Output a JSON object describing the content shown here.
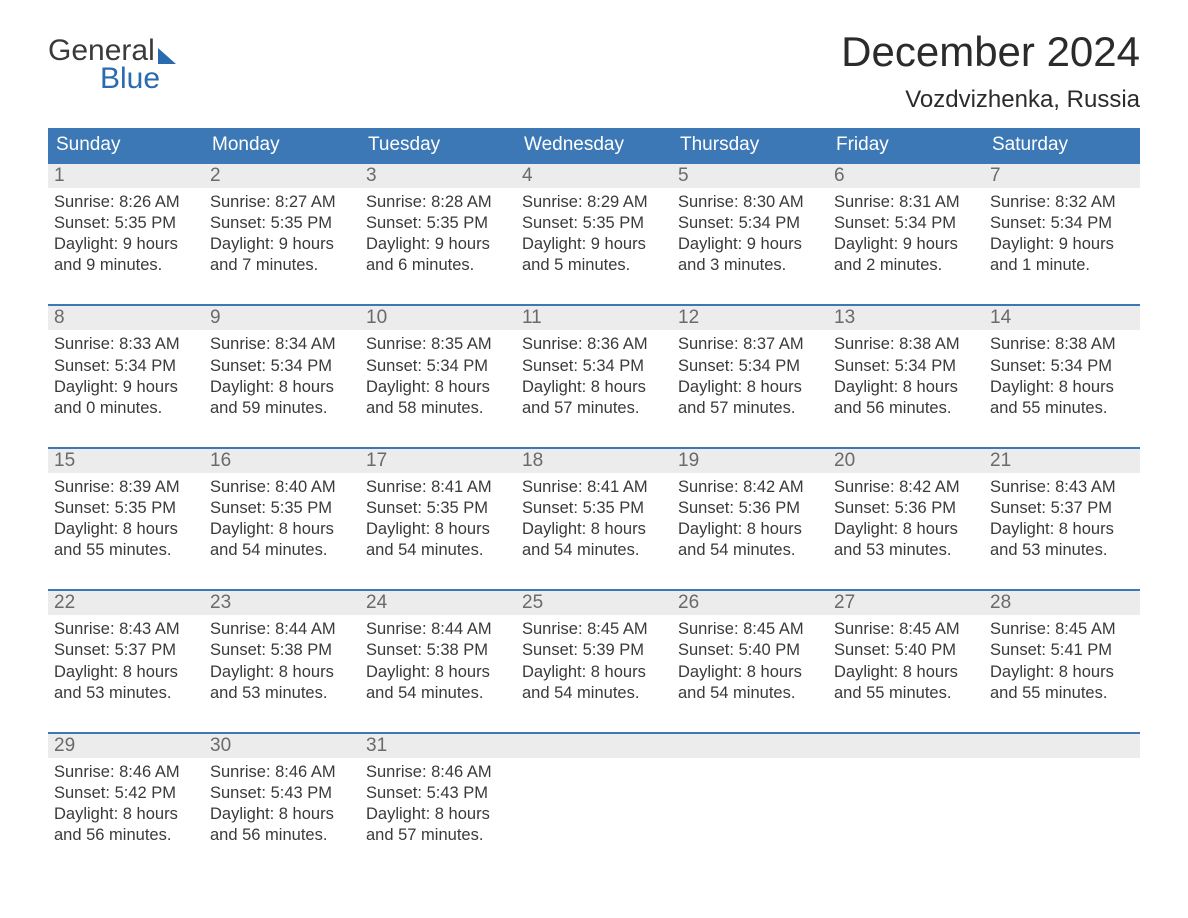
{
  "brand": {
    "top": "General",
    "bottom": "Blue"
  },
  "title": "December 2024",
  "location": "Vozdvizhenka, Russia",
  "colors": {
    "header_bg": "#3b78b5",
    "header_text": "#ffffff",
    "daynum_bg": "#ececec",
    "daynum_text": "#6a6a6a",
    "cell_text": "#3a3a3a",
    "rule": "#3b78b5",
    "title_text": "#2b2b2b",
    "brand_dark": "#3a3a3a",
    "brand_blue": "#2a6bb0"
  },
  "day_names": [
    "Sunday",
    "Monday",
    "Tuesday",
    "Wednesday",
    "Thursday",
    "Friday",
    "Saturday"
  ],
  "weeks": [
    [
      {
        "n": "1",
        "sr": "8:26 AM",
        "ss": "5:35 PM",
        "dl1": "9 hours",
        "dl2": "and 9 minutes."
      },
      {
        "n": "2",
        "sr": "8:27 AM",
        "ss": "5:35 PM",
        "dl1": "9 hours",
        "dl2": "and 7 minutes."
      },
      {
        "n": "3",
        "sr": "8:28 AM",
        "ss": "5:35 PM",
        "dl1": "9 hours",
        "dl2": "and 6 minutes."
      },
      {
        "n": "4",
        "sr": "8:29 AM",
        "ss": "5:35 PM",
        "dl1": "9 hours",
        "dl2": "and 5 minutes."
      },
      {
        "n": "5",
        "sr": "8:30 AM",
        "ss": "5:34 PM",
        "dl1": "9 hours",
        "dl2": "and 3 minutes."
      },
      {
        "n": "6",
        "sr": "8:31 AM",
        "ss": "5:34 PM",
        "dl1": "9 hours",
        "dl2": "and 2 minutes."
      },
      {
        "n": "7",
        "sr": "8:32 AM",
        "ss": "5:34 PM",
        "dl1": "9 hours",
        "dl2": "and 1 minute."
      }
    ],
    [
      {
        "n": "8",
        "sr": "8:33 AM",
        "ss": "5:34 PM",
        "dl1": "9 hours",
        "dl2": "and 0 minutes."
      },
      {
        "n": "9",
        "sr": "8:34 AM",
        "ss": "5:34 PM",
        "dl1": "8 hours",
        "dl2": "and 59 minutes."
      },
      {
        "n": "10",
        "sr": "8:35 AM",
        "ss": "5:34 PM",
        "dl1": "8 hours",
        "dl2": "and 58 minutes."
      },
      {
        "n": "11",
        "sr": "8:36 AM",
        "ss": "5:34 PM",
        "dl1": "8 hours",
        "dl2": "and 57 minutes."
      },
      {
        "n": "12",
        "sr": "8:37 AM",
        "ss": "5:34 PM",
        "dl1": "8 hours",
        "dl2": "and 57 minutes."
      },
      {
        "n": "13",
        "sr": "8:38 AM",
        "ss": "5:34 PM",
        "dl1": "8 hours",
        "dl2": "and 56 minutes."
      },
      {
        "n": "14",
        "sr": "8:38 AM",
        "ss": "5:34 PM",
        "dl1": "8 hours",
        "dl2": "and 55 minutes."
      }
    ],
    [
      {
        "n": "15",
        "sr": "8:39 AM",
        "ss": "5:35 PM",
        "dl1": "8 hours",
        "dl2": "and 55 minutes."
      },
      {
        "n": "16",
        "sr": "8:40 AM",
        "ss": "5:35 PM",
        "dl1": "8 hours",
        "dl2": "and 54 minutes."
      },
      {
        "n": "17",
        "sr": "8:41 AM",
        "ss": "5:35 PM",
        "dl1": "8 hours",
        "dl2": "and 54 minutes."
      },
      {
        "n": "18",
        "sr": "8:41 AM",
        "ss": "5:35 PM",
        "dl1": "8 hours",
        "dl2": "and 54 minutes."
      },
      {
        "n": "19",
        "sr": "8:42 AM",
        "ss": "5:36 PM",
        "dl1": "8 hours",
        "dl2": "and 54 minutes."
      },
      {
        "n": "20",
        "sr": "8:42 AM",
        "ss": "5:36 PM",
        "dl1": "8 hours",
        "dl2": "and 53 minutes."
      },
      {
        "n": "21",
        "sr": "8:43 AM",
        "ss": "5:37 PM",
        "dl1": "8 hours",
        "dl2": "and 53 minutes."
      }
    ],
    [
      {
        "n": "22",
        "sr": "8:43 AM",
        "ss": "5:37 PM",
        "dl1": "8 hours",
        "dl2": "and 53 minutes."
      },
      {
        "n": "23",
        "sr": "8:44 AM",
        "ss": "5:38 PM",
        "dl1": "8 hours",
        "dl2": "and 53 minutes."
      },
      {
        "n": "24",
        "sr": "8:44 AM",
        "ss": "5:38 PM",
        "dl1": "8 hours",
        "dl2": "and 54 minutes."
      },
      {
        "n": "25",
        "sr": "8:45 AM",
        "ss": "5:39 PM",
        "dl1": "8 hours",
        "dl2": "and 54 minutes."
      },
      {
        "n": "26",
        "sr": "8:45 AM",
        "ss": "5:40 PM",
        "dl1": "8 hours",
        "dl2": "and 54 minutes."
      },
      {
        "n": "27",
        "sr": "8:45 AM",
        "ss": "5:40 PM",
        "dl1": "8 hours",
        "dl2": "and 55 minutes."
      },
      {
        "n": "28",
        "sr": "8:45 AM",
        "ss": "5:41 PM",
        "dl1": "8 hours",
        "dl2": "and 55 minutes."
      }
    ],
    [
      {
        "n": "29",
        "sr": "8:46 AM",
        "ss": "5:42 PM",
        "dl1": "8 hours",
        "dl2": "and 56 minutes."
      },
      {
        "n": "30",
        "sr": "8:46 AM",
        "ss": "5:43 PM",
        "dl1": "8 hours",
        "dl2": "and 56 minutes."
      },
      {
        "n": "31",
        "sr": "8:46 AM",
        "ss": "5:43 PM",
        "dl1": "8 hours",
        "dl2": "and 57 minutes."
      },
      null,
      null,
      null,
      null
    ]
  ],
  "labels": {
    "sunrise": "Sunrise:",
    "sunset": "Sunset:",
    "daylight": "Daylight:"
  }
}
